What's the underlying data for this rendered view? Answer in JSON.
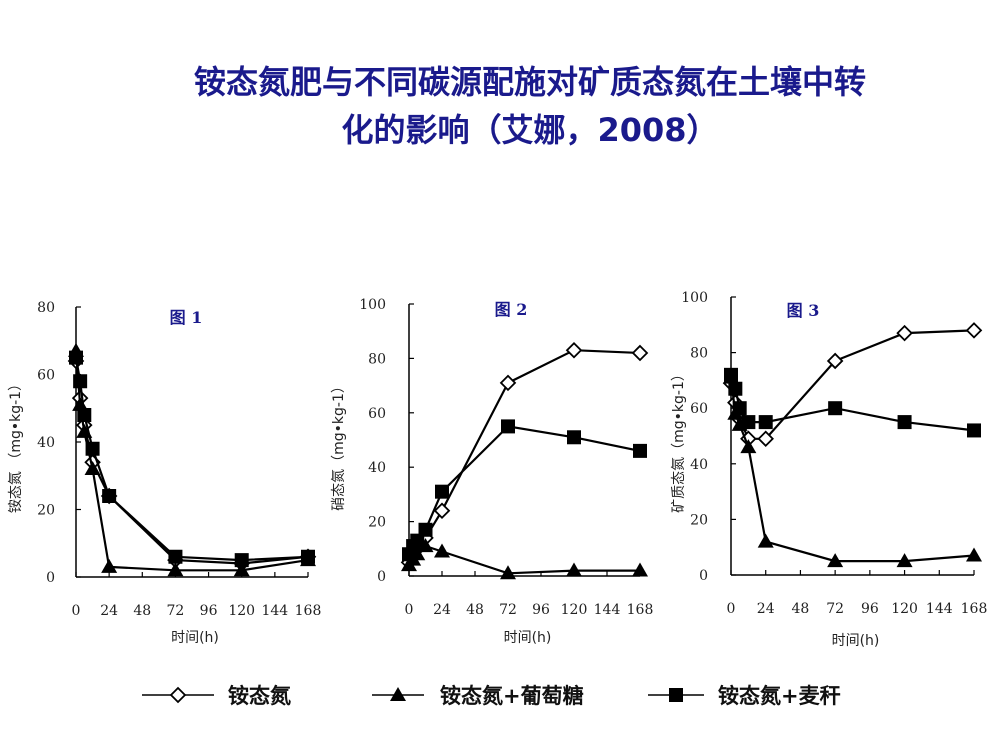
{
  "title": {
    "line1": "铵态氮肥与不同碳源配施对矿质态氮在土壤中转",
    "line2": "化的影响（艾娜，2008）"
  },
  "legend": [
    {
      "name": "铵态氮",
      "marker": "diamond-open"
    },
    {
      "name": "铵态氮+葡萄糖",
      "marker": "triangle-filled"
    },
    {
      "name": "铵态氮+麦秆",
      "marker": "square-filled"
    }
  ],
  "colors": {
    "title": "#1a1a8c",
    "panel_title": "#1a1a8c",
    "series": "#000000"
  },
  "chart_data": [
    {
      "type": "line",
      "title": "图 1",
      "xlabel": "时间(h)",
      "ylabel": "铵态氮 （mg•kg-1）",
      "xlim": [
        0,
        168
      ],
      "ylim": [
        0,
        80
      ],
      "xticks": [
        0,
        24,
        48,
        72,
        96,
        120,
        144,
        168
      ],
      "yticks": [
        0,
        20,
        40,
        60,
        80
      ],
      "series": [
        {
          "name": "铵态氮",
          "marker": "diamond-open",
          "x": [
            0,
            3,
            6,
            12,
            24,
            72,
            120,
            168
          ],
          "y": [
            64,
            53,
            45,
            34,
            24,
            5,
            4,
            6
          ]
        },
        {
          "name": "铵态氮+葡萄糖",
          "marker": "triangle-filled",
          "x": [
            0,
            3,
            6,
            12,
            24,
            72,
            120,
            168
          ],
          "y": [
            67,
            51,
            43,
            32,
            3,
            2,
            2,
            5
          ]
        },
        {
          "name": "铵态氮+麦秆",
          "marker": "square-filled",
          "x": [
            0,
            3,
            6,
            12,
            24,
            72,
            120,
            168
          ],
          "y": [
            65,
            58,
            48,
            38,
            24,
            6,
            5,
            6
          ]
        }
      ]
    },
    {
      "type": "line",
      "title": "图 2",
      "xlabel": "时间(h)",
      "ylabel": "硝态氮（mg•kg-1）",
      "xlim": [
        0,
        168
      ],
      "ylim": [
        0,
        100
      ],
      "xticks": [
        0,
        24,
        48,
        72,
        96,
        120,
        144,
        168
      ],
      "yticks": [
        0,
        20,
        40,
        60,
        80,
        100
      ],
      "series": [
        {
          "name": "铵态氮",
          "marker": "diamond-open",
          "x": [
            0,
            3,
            6,
            12,
            24,
            72,
            120,
            168
          ],
          "y": [
            5,
            7,
            10,
            14,
            24,
            71,
            83,
            82
          ]
        },
        {
          "name": "铵态氮+葡萄糖",
          "marker": "triangle-filled",
          "x": [
            0,
            3,
            6,
            12,
            24,
            72,
            120,
            168
          ],
          "y": [
            4,
            6,
            8,
            11,
            9,
            1,
            2,
            2
          ]
        },
        {
          "name": "铵态氮+麦秆",
          "marker": "square-filled",
          "x": [
            0,
            3,
            6,
            12,
            24,
            72,
            120,
            168
          ],
          "y": [
            8,
            11,
            13,
            17,
            31,
            55,
            51,
            46
          ]
        }
      ]
    },
    {
      "type": "line",
      "title": "图 3",
      "xlabel": "时间(h)",
      "ylabel": "矿质态氮（mg•kg-1）",
      "xlim": [
        0,
        168
      ],
      "ylim": [
        0,
        100
      ],
      "xticks": [
        0,
        24,
        48,
        72,
        96,
        120,
        144,
        168
      ],
      "yticks": [
        0,
        20,
        40,
        60,
        80,
        100
      ],
      "series": [
        {
          "name": "铵态氮",
          "marker": "diamond-open",
          "x": [
            0,
            3,
            6,
            12,
            24,
            72,
            120,
            168
          ],
          "y": [
            69,
            62,
            56,
            49,
            49,
            77,
            87,
            88
          ]
        },
        {
          "name": "铵态氮+葡萄糖",
          "marker": "triangle-filled",
          "x": [
            0,
            3,
            6,
            12,
            24,
            72,
            120,
            168
          ],
          "y": [
            71,
            58,
            54,
            46,
            12,
            5,
            5,
            7
          ]
        },
        {
          "name": "铵态氮+麦秆",
          "marker": "square-filled",
          "x": [
            0,
            3,
            6,
            12,
            24,
            72,
            120,
            168
          ],
          "y": [
            72,
            67,
            60,
            55,
            55,
            60,
            55,
            52
          ]
        }
      ]
    }
  ]
}
